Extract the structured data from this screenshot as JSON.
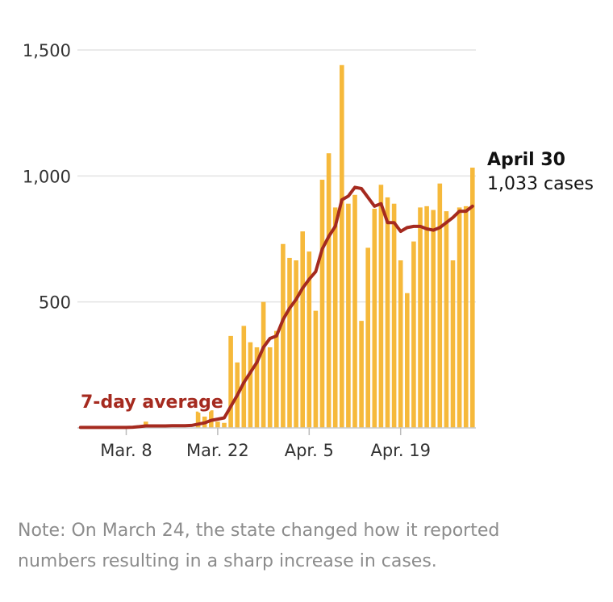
{
  "chart_data": {
    "type": "bar",
    "x_start": "Mar. 1",
    "x_end": "April 30",
    "ylim": [
      0,
      1500
    ],
    "y_ticks": [
      {
        "value": 500,
        "label": "500"
      },
      {
        "value": 1000,
        "label": "1,000"
      },
      {
        "value": 1500,
        "label": "1,500"
      }
    ],
    "x_ticks": [
      {
        "index": 7,
        "label": "Mar. 8"
      },
      {
        "index": 21,
        "label": "Mar. 22"
      },
      {
        "index": 35,
        "label": "Apr. 5"
      },
      {
        "index": 49,
        "label": "Apr. 19"
      }
    ],
    "values": [
      2,
      0,
      0,
      0,
      0,
      0,
      0,
      0,
      0,
      0,
      25,
      0,
      0,
      0,
      0,
      0,
      0,
      0,
      65,
      45,
      70,
      25,
      20,
      365,
      260,
      405,
      340,
      320,
      500,
      320,
      385,
      730,
      675,
      665,
      780,
      700,
      465,
      985,
      1090,
      875,
      1440,
      890,
      925,
      425,
      715,
      870,
      965,
      915,
      890,
      665,
      535,
      740,
      875,
      880,
      865,
      970,
      860,
      665,
      875,
      880,
      1033
    ],
    "average": [
      2,
      2,
      2,
      2,
      2,
      2,
      2,
      2,
      3,
      5,
      8,
      8,
      8,
      8,
      9,
      9,
      9,
      10,
      15,
      20,
      30,
      35,
      40,
      85,
      130,
      180,
      220,
      260,
      320,
      355,
      365,
      430,
      475,
      510,
      555,
      590,
      620,
      710,
      760,
      800,
      905,
      920,
      955,
      950,
      915,
      880,
      890,
      815,
      815,
      780,
      795,
      800,
      800,
      790,
      785,
      795,
      815,
      835,
      860,
      860,
      880
    ],
    "average_label": "7-day average",
    "bar_color": "#f6b93b",
    "line_color": "#a52a1f",
    "grid": true,
    "annotation": {
      "title": "April 30",
      "value": "1,033 cases"
    }
  },
  "note": "Note: On March 24, the state changed how it reported numbers resulting in a sharp increase in cases."
}
